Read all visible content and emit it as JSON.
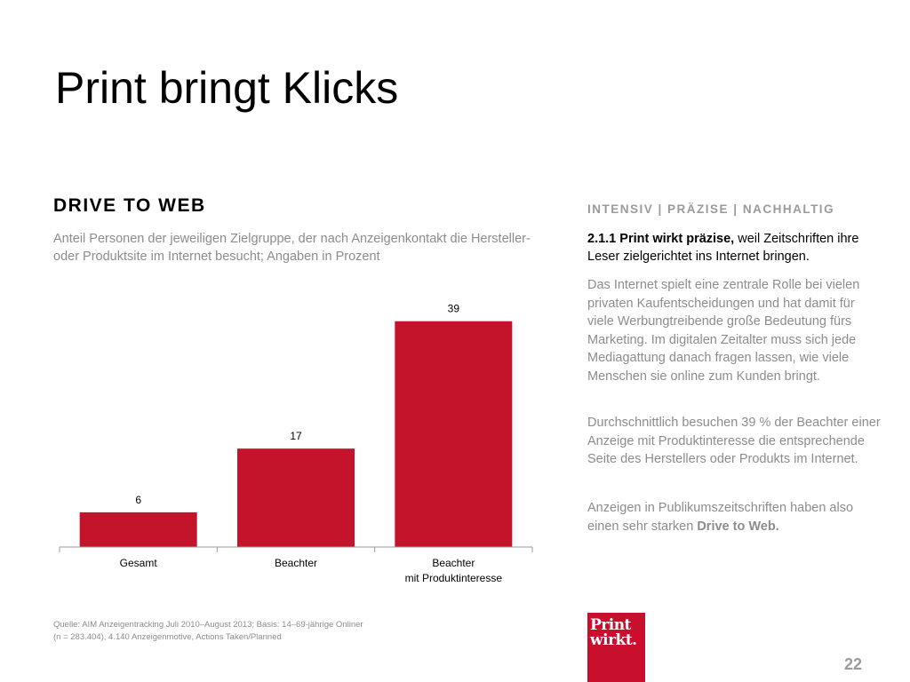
{
  "slide": {
    "title": "Print bringt Klicks",
    "section_heading": "DRIVE TO WEB",
    "subtitle": "Anteil Personen der jeweiligen Zielgruppe, der nach Anzeigenkontakt die Hersteller- oder Produktsite im Internet besucht; Angaben in Prozent",
    "source_line1": "Quelle: AIM Anzeigentracking Juli 2010–August 2013; Basis: 14–69-jährige Onliner",
    "source_line2": "(n = 283.404), 4.140 Anzeigenmotive, Actions Taken/Planned",
    "page_number": "22",
    "logo_line1": "Print",
    "logo_line2": "wirkt."
  },
  "sidebar": {
    "heading": "INTENSIV | PRÄZISE | NACHHALTIG",
    "lead_bold": "2.1.1 Print wirkt präzise,",
    "lead_rest": " weil Zeitschriften ihre Leser zielgerichtet ins Internet bringen.",
    "paragraph1": "Das Internet spielt eine zentrale Rolle bei vielen privaten Kaufentscheidungen und hat damit für viele Werbungtreibende große Bedeutung fürs Marketing. Im digitalen Zeitalter muss sich jede Mediagattung danach fragen lassen, wie viele Menschen sie online zum Kunden bringt.",
    "paragraph2": "Durchschnittlich besuchen 39 % der Beachter einer Anzeige mit Produktinteresse die entsprechende Seite des Herstellers oder Produkts im Internet.",
    "paragraph3_start": "Anzeigen in Publikumszeitschriften haben also einen sehr starken ",
    "paragraph3_bold": "Drive to Web."
  },
  "chart_data": {
    "type": "bar",
    "categories": [
      [
        "Gesamt"
      ],
      [
        "Beachter"
      ],
      [
        "Beachter",
        "mit Produktinteresse"
      ]
    ],
    "values": [
      6,
      17,
      39
    ],
    "data_labels": [
      "6",
      "17",
      "39"
    ],
    "ylim": [
      0,
      40
    ],
    "grid": false,
    "legend": "none",
    "bar_color": "#c4142b"
  },
  "colors": {
    "accent": "#c4142b",
    "logo_bg": "#c8102e",
    "muted_text": "#8c8c8c"
  }
}
